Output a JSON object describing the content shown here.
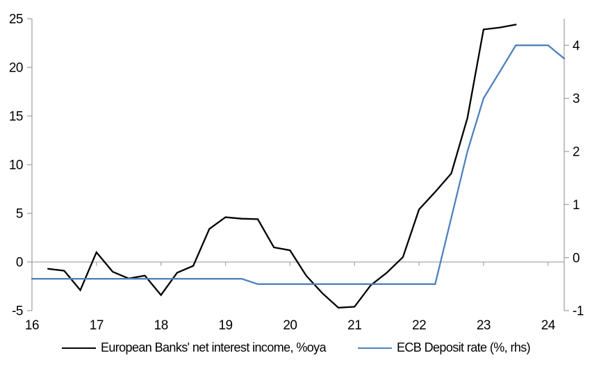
{
  "chart_data": {
    "type": "line",
    "title": "",
    "legend_position": "bottom",
    "gridlines": "zero-line-only",
    "x_axis": {
      "range": [
        16,
        24.25
      ],
      "tick_values": [
        16,
        17,
        18,
        19,
        20,
        21,
        22,
        23,
        24
      ],
      "tick_labels": [
        "16",
        "17",
        "18",
        "19",
        "20",
        "21",
        "22",
        "23",
        "24"
      ]
    },
    "left_axis": {
      "range": [
        -5,
        25
      ],
      "tick_values": [
        -5,
        0,
        5,
        10,
        15,
        20,
        25
      ],
      "tick_labels": [
        "-5",
        "0",
        "5",
        "10",
        "15",
        "20",
        "25"
      ]
    },
    "right_axis": {
      "range": [
        -1,
        4.5
      ],
      "tick_values": [
        -1,
        0,
        1,
        2,
        3,
        4
      ],
      "tick_labels": [
        "-1",
        "0",
        "1",
        "2",
        "3",
        "4"
      ]
    },
    "series": [
      {
        "name": "European Banks' net interest income, %oya",
        "axis": "left",
        "color": "#000000",
        "x": [
          16.25,
          16.5,
          16.75,
          17.0,
          17.25,
          17.5,
          17.75,
          18.0,
          18.25,
          18.5,
          18.75,
          19.0,
          19.25,
          19.5,
          19.75,
          20.0,
          20.25,
          20.5,
          20.75,
          21.0,
          21.25,
          21.5,
          21.75,
          22.0,
          22.25,
          22.5,
          22.75,
          23.0,
          23.25,
          23.5
        ],
        "values": [
          -0.7,
          -0.9,
          -2.9,
          1.0,
          -1.0,
          -1.7,
          -1.4,
          -3.4,
          -1.1,
          -0.4,
          3.4,
          4.6,
          4.45,
          4.4,
          1.5,
          1.2,
          -1.4,
          -3.2,
          -4.7,
          -4.6,
          -2.4,
          -1.1,
          0.5,
          5.4,
          7.2,
          9.1,
          14.8,
          23.9,
          24.1,
          24.4
        ]
      },
      {
        "name": "ECB Deposit rate (%, rhs)",
        "axis": "right",
        "color": "#4E81BD",
        "x": [
          16.0,
          16.25,
          16.5,
          16.75,
          17.0,
          17.25,
          17.5,
          17.75,
          18.0,
          18.25,
          18.5,
          18.75,
          19.0,
          19.25,
          19.5,
          19.75,
          20.0,
          20.25,
          20.5,
          20.75,
          21.0,
          21.25,
          21.5,
          21.75,
          22.0,
          22.25,
          22.5,
          22.75,
          23.0,
          23.25,
          23.5,
          23.75,
          24.0,
          24.25
        ],
        "values": [
          -0.4,
          -0.4,
          -0.4,
          -0.4,
          -0.4,
          -0.4,
          -0.4,
          -0.4,
          -0.4,
          -0.4,
          -0.4,
          -0.4,
          -0.4,
          -0.4,
          -0.5,
          -0.5,
          -0.5,
          -0.5,
          -0.5,
          -0.5,
          -0.5,
          -0.5,
          -0.5,
          -0.5,
          -0.5,
          -0.5,
          0.75,
          2.0,
          3.0,
          3.5,
          4.0,
          4.0,
          4.0,
          3.75
        ]
      }
    ]
  },
  "colors": {
    "axis_line": "#A3A3A3",
    "zero_line": "#A9A9A9",
    "text": "#000000",
    "background": "#FFFFFF"
  }
}
